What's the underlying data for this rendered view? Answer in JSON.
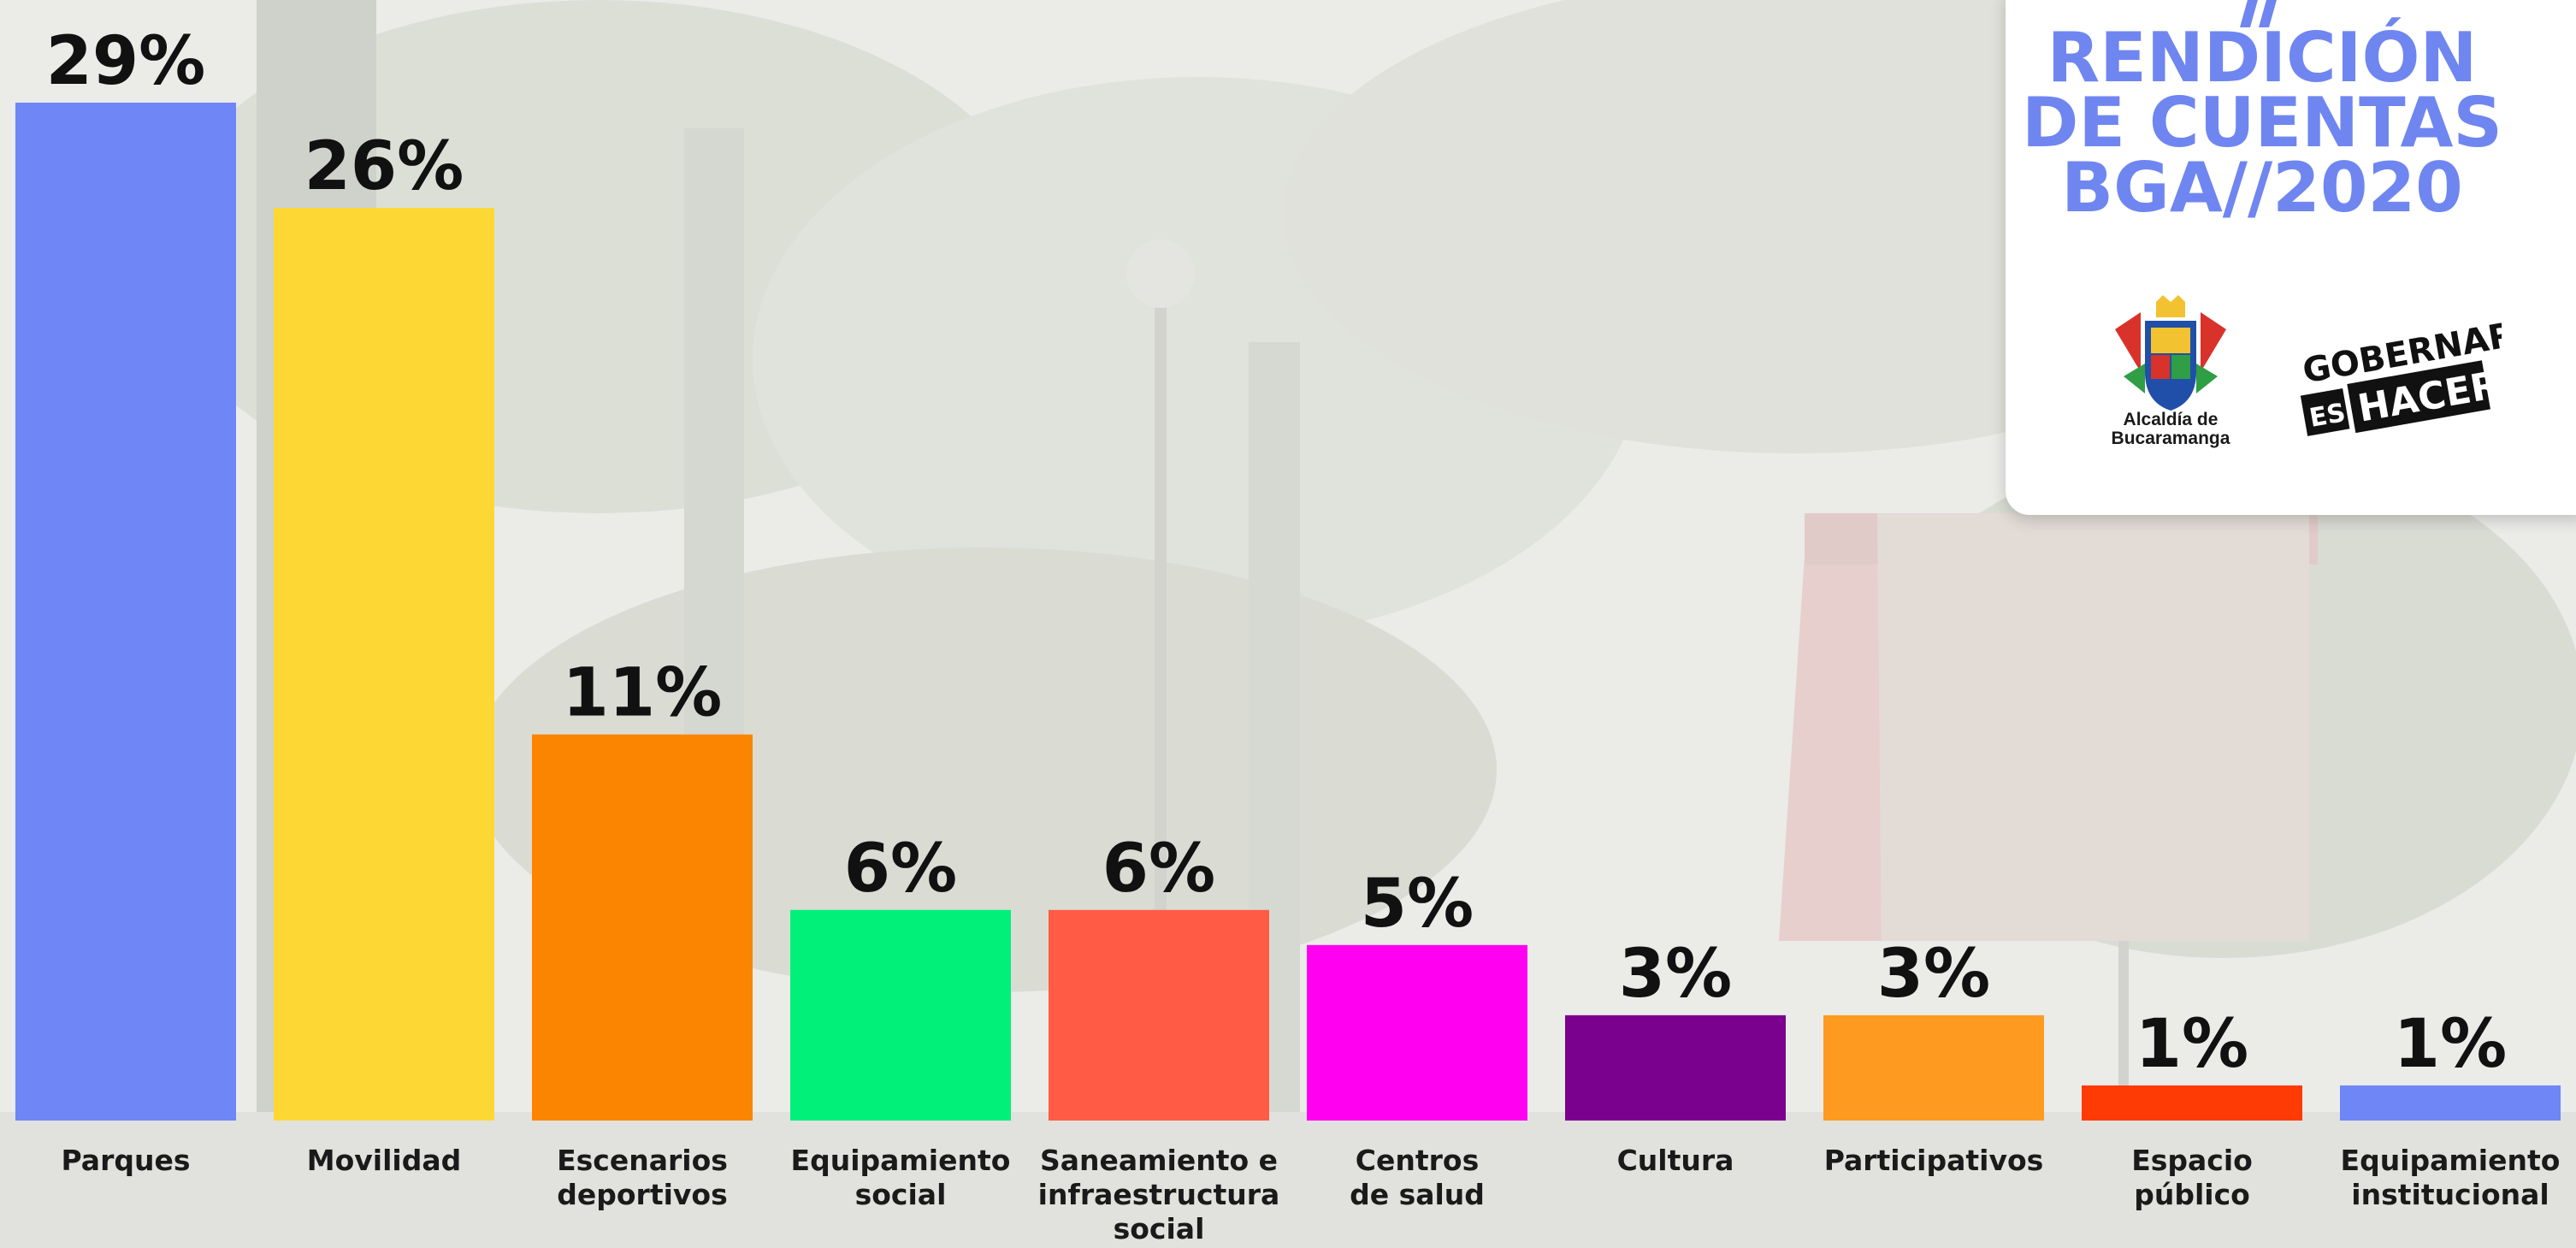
{
  "chart_data": {
    "type": "bar",
    "categories": [
      "Parques",
      "Movilidad",
      "Escenarios deportivos",
      "Equipamiento social",
      "Saneamiento e infraestructura social",
      "Centros de salud",
      "Cultura",
      "Participativos",
      "Espacio público",
      "Equipamiento institucional"
    ],
    "category_lines": [
      [
        "Parques"
      ],
      [
        "Movilidad"
      ],
      [
        "Escenarios",
        "deportivos"
      ],
      [
        "Equipamiento",
        "social"
      ],
      [
        "Saneamiento e",
        "infraestructura",
        "social"
      ],
      [
        "Centros",
        "de salud"
      ],
      [
        "Cultura"
      ],
      [
        "Participativos"
      ],
      [
        "Espacio",
        "público"
      ],
      [
        "Equipamiento",
        "institucional"
      ]
    ],
    "values": [
      29,
      26,
      11,
      6,
      6,
      5,
      3,
      3,
      1,
      1
    ],
    "value_labels": [
      "29%",
      "26%",
      "11%",
      "6%",
      "6%",
      "5%",
      "3%",
      "3%",
      "1%",
      "1%"
    ],
    "colors": [
      "#6f86f7",
      "#fdd835",
      "#fb8500",
      "#00f07a",
      "#ff5b45",
      "#ff00f0",
      "#7a008e",
      "#fd9a1f",
      "#fe3a05",
      "#6f86f7"
    ],
    "title": "",
    "xlabel": "",
    "ylabel": "",
    "ylim": [
      0,
      29
    ],
    "grid": false,
    "legend": "none"
  },
  "branding": {
    "title_lines": [
      "RENDICIÓN",
      "DE CUENTAS",
      "BGA//2020"
    ],
    "accent_color": "#6f86f0",
    "alcaldia_lines": [
      "Alcaldía de",
      "Bucaramanga"
    ],
    "slogan_top": "GOBERNAR",
    "slogan_es": "ES",
    "slogan_bottom": "HACER",
    "coat_icon": "coat-of-arms-icon",
    "slash_icon": "double-slash-icon"
  }
}
